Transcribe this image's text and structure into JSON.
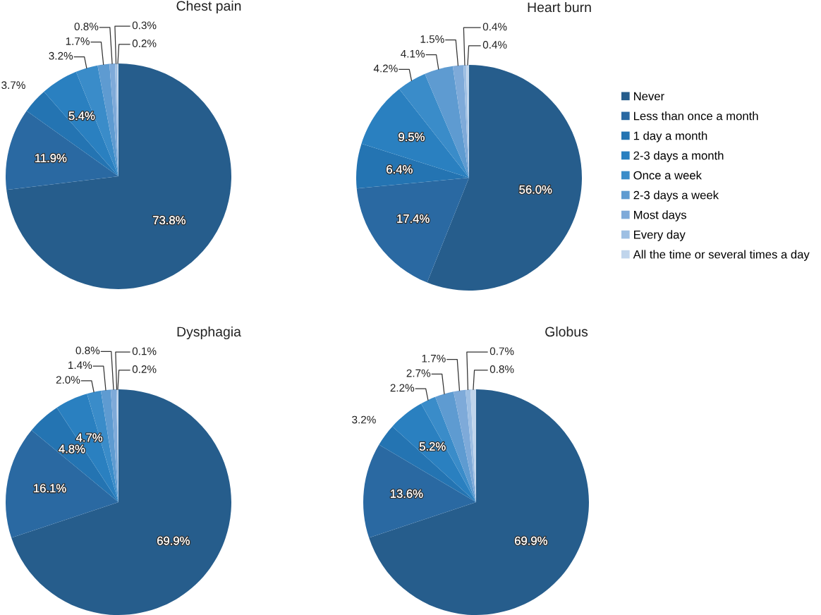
{
  "chart_data": [
    {
      "type": "pie",
      "title": "Chest pain",
      "categories": [
        "Never",
        "Less than once a month",
        "1 day a month",
        "2-3 days a month",
        "Once a week",
        "2-3 days a week",
        "Most days",
        "Every day",
        "All the time or several times a day"
      ],
      "values": [
        73.8,
        11.9,
        3.7,
        5.4,
        3.2,
        1.7,
        0.8,
        0.3,
        0.2
      ],
      "value_labels": [
        "73.8%",
        "11.9%",
        "3.7%",
        "5.4%",
        "3.2%",
        "1.7%",
        "0.8%",
        "0.3%",
        "0.2%"
      ],
      "colors": [
        "#265d8c",
        "#2a69a2",
        "#2474b2",
        "#2a80c0",
        "#3a8cc9",
        "#5e9bd1",
        "#7eaad9",
        "#9ebfe3",
        "#c0d5ec"
      ],
      "legend": "right"
    },
    {
      "type": "pie",
      "title": "Heart burn",
      "categories": [
        null,
        null,
        null,
        null,
        null,
        null,
        null,
        null,
        null
      ],
      "values": [
        56.0,
        17.4,
        6.4,
        9.5,
        4.2,
        4.1,
        1.5,
        0.4,
        0.4
      ],
      "value_labels": [
        "56.0%",
        "17.4%",
        "6.4%",
        "9.5%",
        "4.2%",
        "4.1%",
        "1.5%",
        "0.4%",
        "0.4%"
      ],
      "colors": [
        "#265d8c",
        "#2a69a2",
        "#2474b2",
        "#2a80c0",
        "#3a8cc9",
        "#5e9bd1",
        "#7eaad9",
        "#9ebfe3",
        "#c0d5ec"
      ]
    },
    {
      "type": "pie",
      "title": "Dysphagia",
      "categories": [
        null,
        null,
        null,
        null,
        null,
        null,
        null,
        null,
        null
      ],
      "values": [
        69.9,
        16.1,
        4.8,
        4.7,
        2.0,
        1.4,
        0.8,
        0.1,
        0.2
      ],
      "value_labels": [
        "69.9%",
        "16.1%",
        "4.8%",
        "4.7%",
        "2.0%",
        "1.4%",
        "0.8%",
        "0.1%",
        "0.2%"
      ],
      "colors": [
        "#265d8c",
        "#2a69a2",
        "#2474b2",
        "#2a80c0",
        "#3a8cc9",
        "#5e9bd1",
        "#7eaad9",
        "#9ebfe3",
        "#c0d5ec"
      ]
    },
    {
      "type": "pie",
      "title": "Globus",
      "categories": [
        null,
        null,
        null,
        null,
        null,
        null,
        null,
        null,
        null
      ],
      "values": [
        69.9,
        13.6,
        3.2,
        5.2,
        2.2,
        2.7,
        1.7,
        0.7,
        0.8
      ],
      "value_labels": [
        "69.9%",
        "13.6%",
        "3.2%",
        "5.2%",
        "2.2%",
        "2.7%",
        "1.7%",
        "0.7%",
        "0.8%"
      ],
      "colors": [
        "#265d8c",
        "#2a69a2",
        "#2474b2",
        "#2a80c0",
        "#3a8cc9",
        "#5e9bd1",
        "#7eaad9",
        "#9ebfe3",
        "#c0d5ec"
      ]
    }
  ]
}
